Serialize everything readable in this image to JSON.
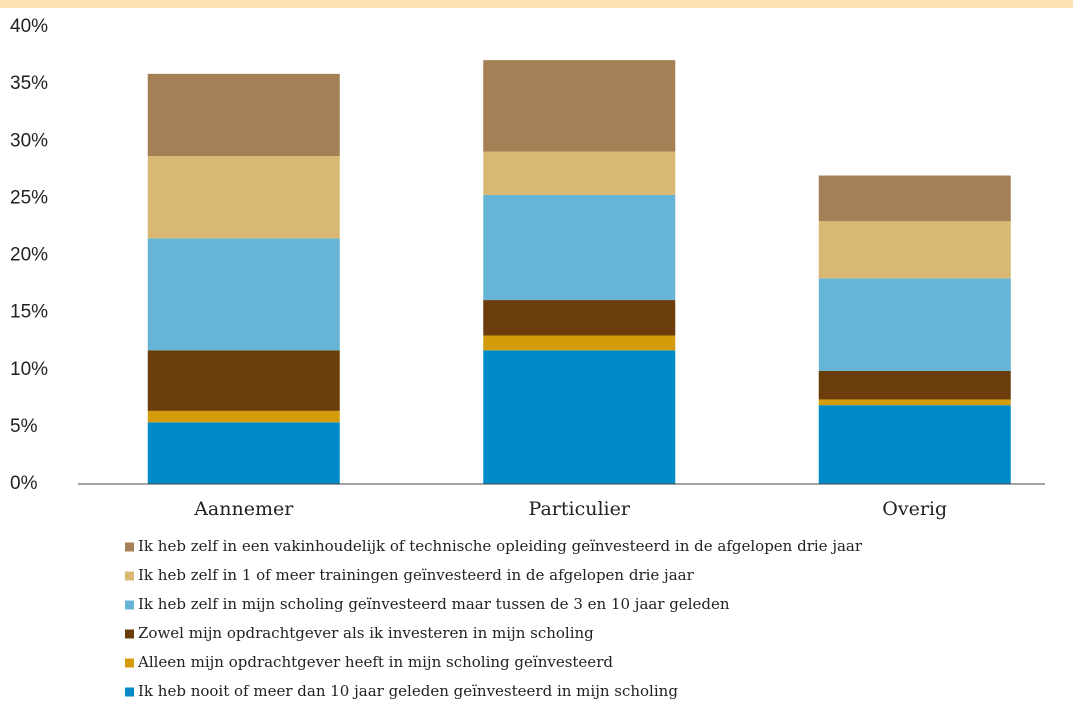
{
  "chart_data": {
    "type": "stacked_bar",
    "categories": [
      "Aannemer",
      "Particulier",
      "Overig"
    ],
    "series": [
      {
        "name": "Ik heb zelf in een vakinhoudelijk of technische opleiding geïnvesteerd in de afgelopen drie jaar",
        "color": "#a57f55",
        "values": [
          7.2,
          8.0,
          4.0
        ]
      },
      {
        "name": "Ik heb zelf in 1 of meer trainingen geïnvesteerd in de afgelopen drie jaar",
        "color": "#d9b874",
        "values": [
          7.2,
          3.8,
          5.0
        ]
      },
      {
        "name": "Ik heb zelf in mijn scholing geïnvesteerd maar tussen de 3 en 10 jaar geleden",
        "color": "#66b5d6",
        "values": [
          9.8,
          9.2,
          8.1
        ]
      },
      {
        "name": "Zowel mijn opdrachtgever als ik investeren in mijn scholing",
        "color": "#6b3d0a",
        "values": [
          5.3,
          3.1,
          2.5
        ]
      },
      {
        "name": "Alleen mijn opdrachtgever heeft in mijn scholing geïnvesteerd",
        "color": "#d49b0a",
        "values": [
          1.0,
          1.3,
          0.5
        ]
      },
      {
        "name": "Ik heb nooit of meer dan 10 jaar geleden geïnvesteerd in mijn scholing",
        "color": "#008bc8",
        "values": [
          5.4,
          11.7,
          6.9
        ]
      }
    ],
    "ylim": [
      0,
      40
    ],
    "yticks": [
      {
        "value": 0,
        "label": "0%"
      },
      {
        "value": 5,
        "label": "5%"
      },
      {
        "value": 10,
        "label": "10%"
      },
      {
        "value": 15,
        "label": "15%"
      },
      {
        "value": 20,
        "label": "20%"
      },
      {
        "value": 25,
        "label": "25%"
      },
      {
        "value": 30,
        "label": "30%"
      },
      {
        "value": 35,
        "label": "35%"
      },
      {
        "value": 40,
        "label": "40%"
      }
    ],
    "grid": false
  }
}
